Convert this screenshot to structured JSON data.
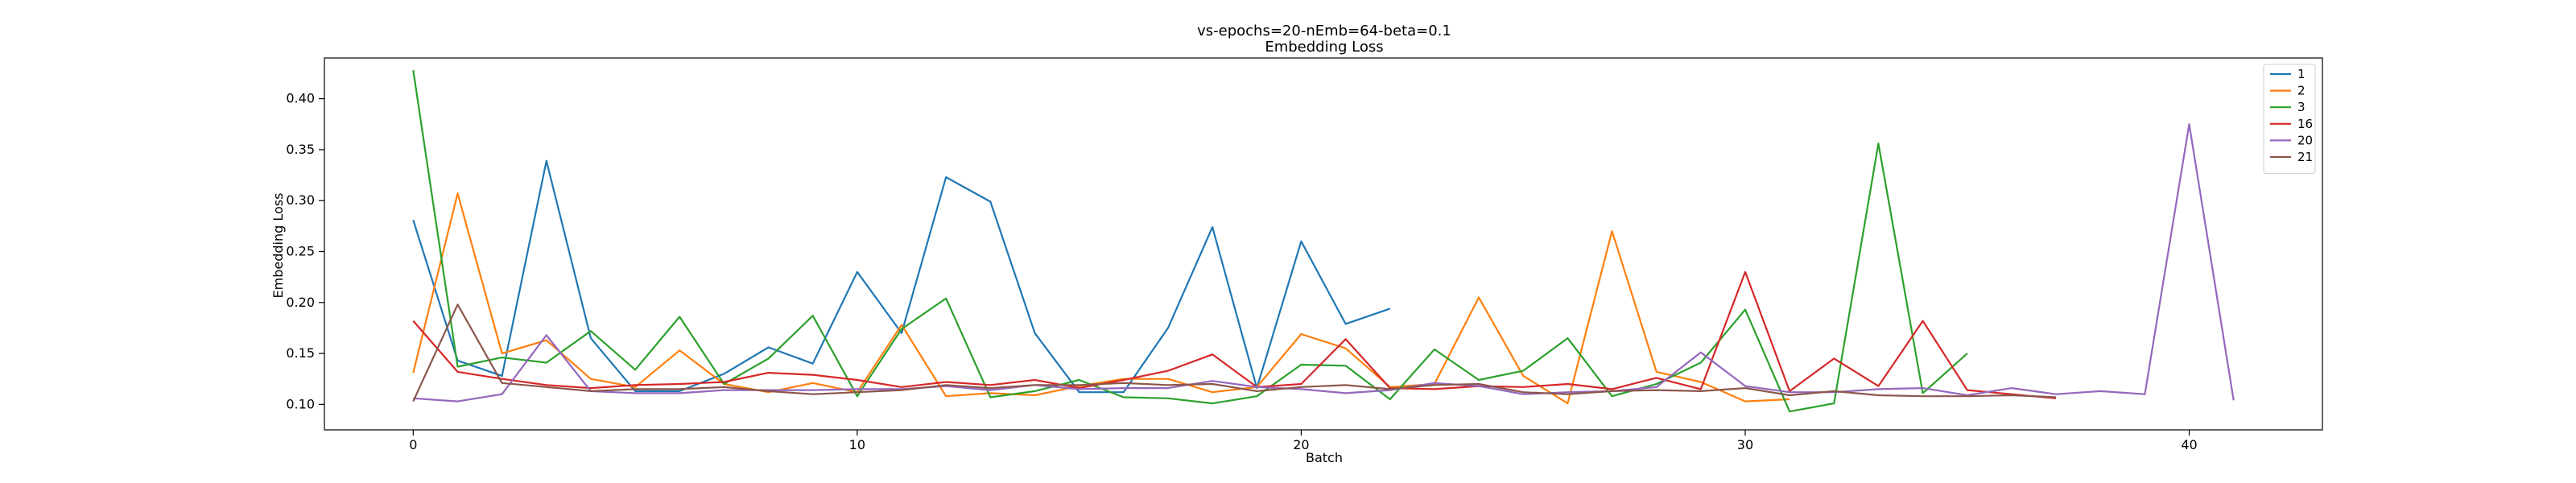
{
  "chart_data": {
    "type": "line",
    "title": "vs-epochs=20-nEmb=64-beta=0.1",
    "subtitle": "Embedding Loss",
    "xlabel": "Batch",
    "ylabel": "Embedding Loss",
    "xlim": [
      -2,
      43
    ],
    "ylim": [
      0.075,
      0.44
    ],
    "xticks": [
      0,
      10,
      20,
      30,
      40
    ],
    "yticks": [
      0.1,
      0.15,
      0.2,
      0.25,
      0.3,
      0.35,
      0.4
    ],
    "ytick_labels": [
      "0.10",
      "0.15",
      "0.20",
      "0.25",
      "0.30",
      "0.35",
      "0.40"
    ],
    "grid": false,
    "legend_position": "top-right",
    "series": [
      {
        "name": "1",
        "color": "#1f77b4",
        "values": [
          0.281,
          0.143,
          0.128,
          0.339,
          0.165,
          0.113,
          0.113,
          0.13,
          0.156,
          0.14,
          0.23,
          0.17,
          0.323,
          0.299,
          0.17,
          0.112,
          0.112,
          0.175,
          0.274,
          0.116,
          0.26,
          0.179,
          0.194
        ]
      },
      {
        "name": "2",
        "color": "#ff7f0e",
        "values": [
          0.131,
          0.307,
          0.15,
          0.163,
          0.125,
          0.117,
          0.153,
          0.12,
          0.112,
          0.121,
          0.112,
          0.178,
          0.108,
          0.111,
          0.109,
          0.118,
          0.125,
          0.125,
          0.112,
          0.117,
          0.169,
          0.155,
          0.117,
          0.12,
          0.205,
          0.128,
          0.101,
          0.27,
          0.132,
          0.122,
          0.103,
          0.105
        ]
      },
      {
        "name": "3",
        "color": "#2ca02c",
        "values": [
          0.428,
          0.137,
          0.146,
          0.141,
          0.172,
          0.134,
          0.186,
          0.12,
          0.145,
          0.187,
          0.108,
          0.174,
          0.204,
          0.107,
          0.113,
          0.124,
          0.107,
          0.106,
          0.101,
          0.108,
          0.139,
          0.138,
          0.105,
          0.154,
          0.124,
          0.133,
          0.165,
          0.108,
          0.12,
          0.141,
          0.193,
          0.093,
          0.101,
          0.356,
          0.111,
          0.15
        ]
      },
      {
        "name": "16",
        "color": "#d62728",
        "values": [
          0.182,
          0.132,
          0.125,
          0.119,
          0.116,
          0.119,
          0.12,
          0.122,
          0.131,
          0.129,
          0.124,
          0.117,
          0.122,
          0.119,
          0.124,
          0.116,
          0.124,
          0.133,
          0.149,
          0.117,
          0.12,
          0.164,
          0.116,
          0.115,
          0.118,
          0.117,
          0.12,
          0.115,
          0.126,
          0.115,
          0.23,
          0.113,
          0.145,
          0.118,
          0.182,
          0.114,
          0.11,
          0.106
        ]
      },
      {
        "name": "20",
        "color": "#9467bd",
        "values": [
          0.106,
          0.103,
          0.11,
          0.168,
          0.113,
          0.111,
          0.111,
          0.114,
          0.114,
          0.114,
          0.115,
          0.115,
          0.118,
          0.114,
          0.119,
          0.115,
          0.116,
          0.116,
          0.123,
          0.117,
          0.115,
          0.111,
          0.114,
          0.121,
          0.118,
          0.11,
          0.112,
          0.113,
          0.117,
          0.151,
          0.118,
          0.112,
          0.112,
          0.115,
          0.116,
          0.109,
          0.116,
          0.11,
          0.113,
          0.11,
          0.375,
          0.104
        ]
      },
      {
        "name": "21",
        "color": "#8c564b",
        "values": [
          0.103,
          0.198,
          0.121,
          0.117,
          0.113,
          0.115,
          0.115,
          0.117,
          0.113,
          0.11,
          0.112,
          0.114,
          0.119,
          0.116,
          0.119,
          0.119,
          0.121,
          0.119,
          0.12,
          0.113,
          0.117,
          0.119,
          0.115,
          0.119,
          0.12,
          0.112,
          0.11,
          0.113,
          0.114,
          0.113,
          0.116,
          0.109,
          0.113,
          0.109,
          0.108,
          0.108,
          0.109,
          0.107
        ]
      }
    ]
  }
}
